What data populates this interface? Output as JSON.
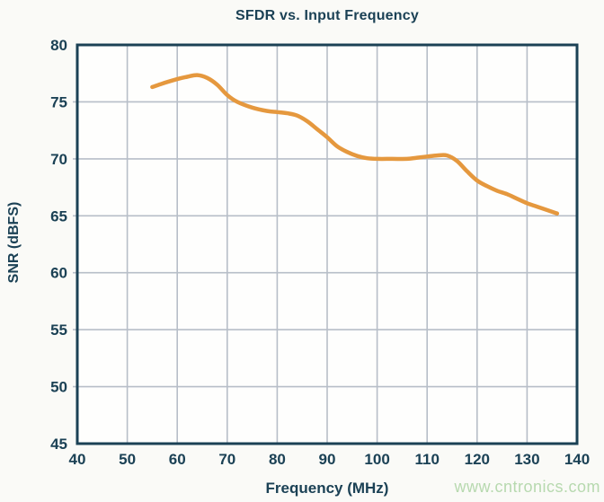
{
  "page": {
    "background": "#fafaf7"
  },
  "watermark": {
    "text": "www.cntronics.com",
    "color": "#b7d9af"
  },
  "chart_data": {
    "type": "line",
    "title": "SFDR vs. Input Frequency",
    "xlabel": "Frequency (MHz)",
    "ylabel": "SNR (dBFS)",
    "xlim": [
      40,
      140
    ],
    "ylim": [
      45,
      80
    ],
    "x_ticks": [
      40,
      50,
      60,
      70,
      80,
      90,
      100,
      110,
      120,
      130,
      140
    ],
    "y_ticks": [
      45,
      50,
      55,
      60,
      65,
      70,
      75,
      80
    ],
    "grid": true,
    "legend": "none",
    "colors": {
      "line": "#e5983e",
      "axis": "#1b4155",
      "grid": "#b7bec8",
      "plot_bg": "#fefefd"
    },
    "series": [
      {
        "name": "SFDR",
        "x": [
          55,
          57,
          60,
          62,
          64,
          66,
          68,
          70,
          72,
          75,
          78,
          80,
          82,
          84,
          86,
          88,
          90,
          92,
          94,
          96,
          98,
          100,
          103,
          106,
          108,
          110,
          112,
          114,
          116,
          118,
          120,
          122,
          124,
          126,
          128,
          130,
          132,
          134,
          136
        ],
        "y": [
          76.3,
          76.6,
          77.0,
          77.2,
          77.35,
          77.1,
          76.5,
          75.6,
          75.0,
          74.5,
          74.2,
          74.1,
          74.0,
          73.8,
          73.3,
          72.6,
          71.9,
          71.1,
          70.6,
          70.25,
          70.05,
          70.0,
          70.0,
          70.0,
          70.1,
          70.2,
          70.3,
          70.3,
          69.8,
          68.9,
          68.1,
          67.6,
          67.2,
          66.9,
          66.5,
          66.1,
          65.8,
          65.5,
          65.2
        ]
      }
    ]
  }
}
